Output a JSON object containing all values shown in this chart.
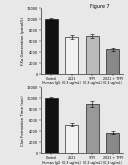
{
  "top_chart": {
    "ylabel": "FXa Generation (pmol/L)",
    "categories": [
      "Control\nHuman IgG",
      "2021\n(0.3 ug/mL)",
      "TFPI\n(0.3 ug/mL)",
      "2021 + TFPI\n(0.3 ug/mL)"
    ],
    "values": [
      10000,
      6800,
      7000,
      4500
    ],
    "errors": [
      150,
      350,
      400,
      250
    ],
    "colors": [
      "#111111",
      "#f0f0f0",
      "#bbbbbb",
      "#888888"
    ],
    "ylim": [
      0,
      12000
    ],
    "yticks": [
      0,
      2000,
      4000,
      6000,
      8000,
      10000,
      12000
    ]
  },
  "bottom_chart": {
    "ylabel": "Clot Formation Time (sec)",
    "categories": [
      "Control\nHuman IgG",
      "2021\n(0.3 ug/mL)",
      "TFPI\n(0.3 ug/mL)",
      "2021 + TFPI\n(0.3 ug/mL)"
    ],
    "values": [
      10000,
      5200,
      9000,
      3800
    ],
    "errors": [
      180,
      300,
      480,
      220
    ],
    "colors": [
      "#111111",
      "#f0f0f0",
      "#999999",
      "#888888"
    ],
    "ylim": [
      0,
      12000
    ],
    "yticks": [
      0,
      2000,
      4000,
      6000,
      8000,
      10000,
      12000
    ]
  },
  "bg_color": "#e8e8e8",
  "figure_title": "Figure 7"
}
